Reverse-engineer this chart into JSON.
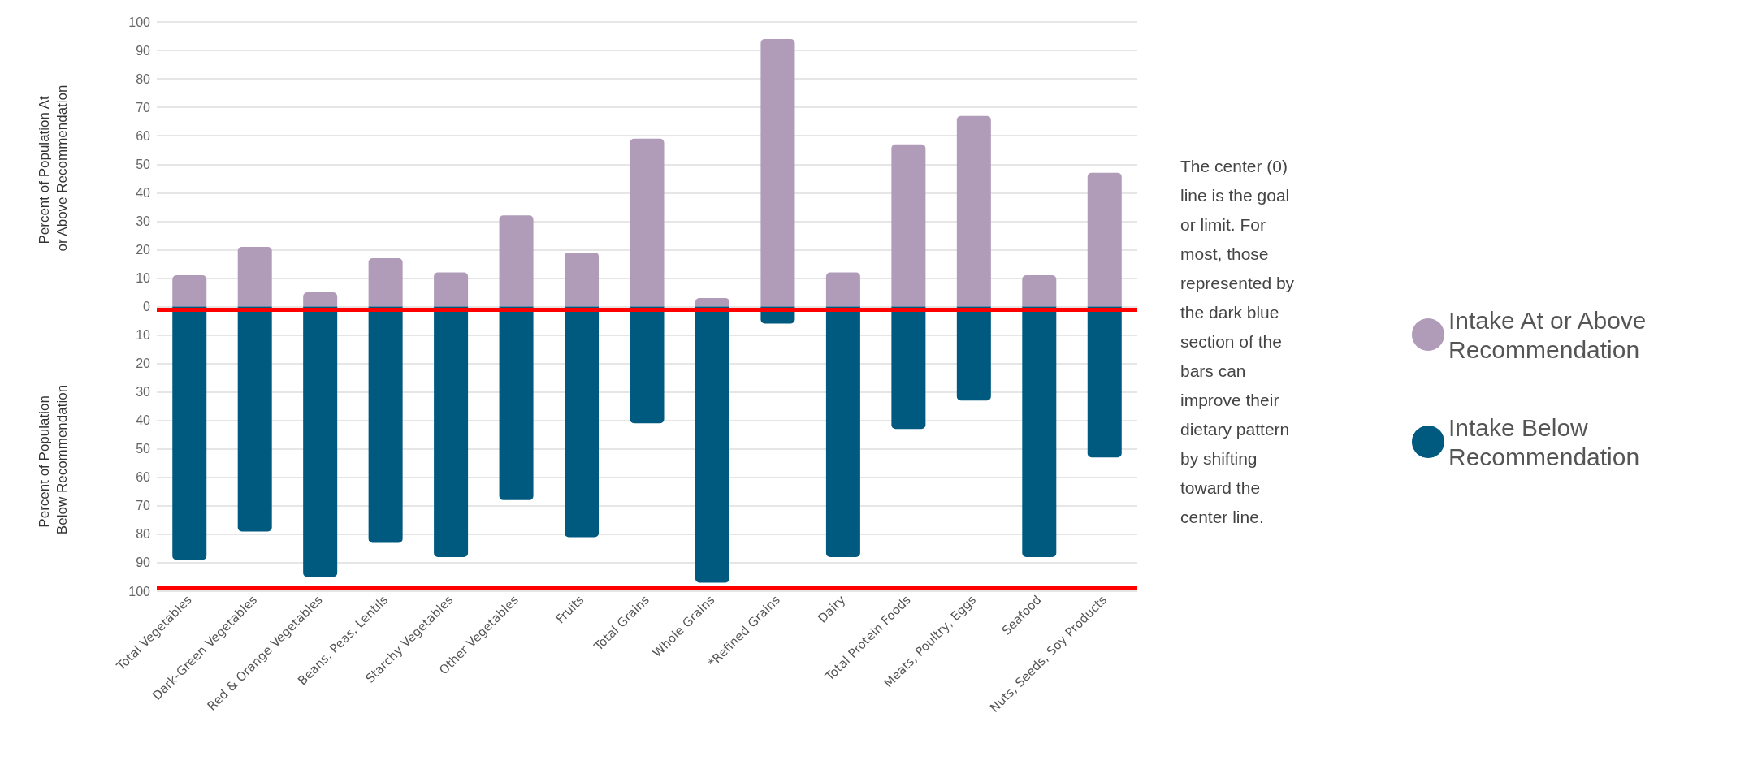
{
  "chart_data": {
    "type": "bar",
    "stacked": true,
    "ylabel": "Percent of Population At or Above Recommendation",
    "categories": [
      "Total Vegetables",
      "Dark-Green Vegetables",
      "Red & Orange Vegetables",
      "Beans, Peas, Lentils",
      "Starchy Vegetables",
      "Other Vegetables",
      "Fruits",
      "Total Grains",
      "Whole Grains",
      "*Refined Grains",
      "Dairy",
      "Total Protein Foods",
      "Meats, Poultry, Eggs",
      "Seafood",
      "Nuts, Seeds, Soy Products"
    ],
    "series": [
      {
        "name": "Intake At or Above Recommendation",
        "color": "#b09cb8",
        "values": [
          11,
          21,
          5,
          17,
          12,
          32,
          19,
          59,
          3,
          94,
          12,
          57,
          67,
          11,
          47
        ]
      },
      {
        "name": "Intake Below Recommendation",
        "color": "#005a80",
        "values": [
          -89,
          -79,
          -95,
          -83,
          -88,
          -68,
          -81,
          -41,
          -97,
          -6,
          -88,
          -43,
          -33,
          -88,
          -53
        ]
      }
    ],
    "ylim": [
      -100,
      100
    ],
    "yticks": [
      {
        "value": -100,
        "label": "100"
      },
      {
        "value": -90,
        "label": "90"
      },
      {
        "value": -80,
        "label": "80"
      },
      {
        "value": -70,
        "label": "70"
      },
      {
        "value": -60,
        "label": "60"
      },
      {
        "value": -50,
        "label": "50"
      },
      {
        "value": -40,
        "label": "40"
      },
      {
        "value": -30,
        "label": "30"
      },
      {
        "value": -20,
        "label": "20"
      },
      {
        "value": -10,
        "label": "10"
      },
      0,
      10,
      20,
      30,
      40,
      50,
      60,
      70,
      80,
      90,
      100
    ],
    "ref_lines": [
      {
        "axis": "y",
        "value": -1,
        "color": "#ff0000"
      },
      {
        "axis": "y",
        "value": -99,
        "color": "#ff0000"
      }
    ],
    "annotations": [
      "Percent of Population Below Recommendation",
      "The center (0) line is the goal or limit. For most, those represented by the dark blue section of the bars can improve their dietary pattern by shifting toward the center line."
    ],
    "grid": "y",
    "legend": "right"
  }
}
